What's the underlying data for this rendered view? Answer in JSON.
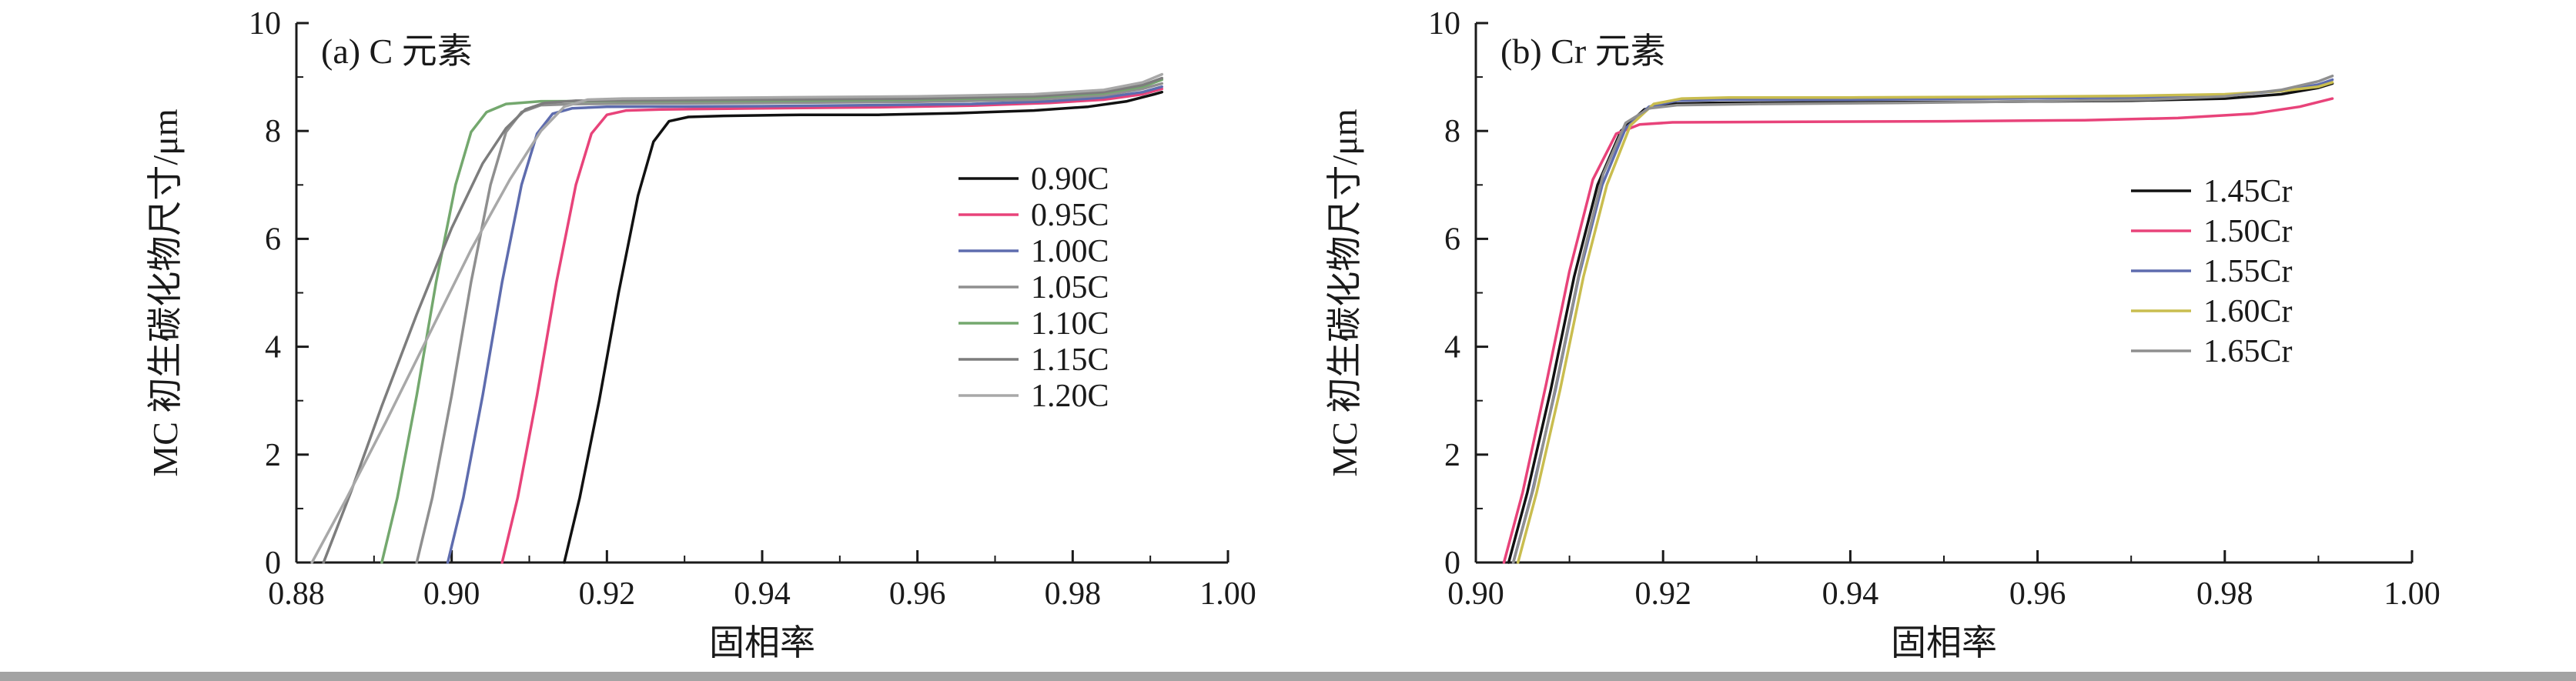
{
  "page": {
    "background": "#ffffff",
    "bottom_bar_color": "#a3a3a3",
    "axis_color": "#1a1a1a"
  },
  "chart_data": [
    {
      "type": "line",
      "panel_label": "(a) C 元素",
      "xlabel": "固相率",
      "ylabel": "MC 初生碳化物尺寸/μm",
      "xlim": [
        0.88,
        1.0
      ],
      "ylim": [
        0,
        10
      ],
      "xtick_step": 0.02,
      "ytick_step": 2,
      "x_decimals": 2,
      "grid": false,
      "legend_position": "right-middle",
      "series": [
        {
          "name": "0.90C",
          "color": "#111111",
          "points": [
            [
              0.9145,
              0
            ],
            [
              0.9165,
              1.2
            ],
            [
              0.919,
              3.0
            ],
            [
              0.9215,
              5.0
            ],
            [
              0.924,
              6.8
            ],
            [
              0.926,
              7.8
            ],
            [
              0.928,
              8.18
            ],
            [
              0.9305,
              8.26
            ],
            [
              0.935,
              8.28
            ],
            [
              0.945,
              8.3
            ],
            [
              0.955,
              8.3
            ],
            [
              0.965,
              8.33
            ],
            [
              0.975,
              8.38
            ],
            [
              0.982,
              8.45
            ],
            [
              0.987,
              8.55
            ],
            [
              0.9905,
              8.68
            ],
            [
              0.9915,
              8.72
            ]
          ]
        },
        {
          "name": "0.95C",
          "color": "#e8437a",
          "points": [
            [
              0.9065,
              0
            ],
            [
              0.9085,
              1.2
            ],
            [
              0.911,
              3.1
            ],
            [
              0.9135,
              5.2
            ],
            [
              0.916,
              7.0
            ],
            [
              0.918,
              7.95
            ],
            [
              0.92,
              8.3
            ],
            [
              0.9225,
              8.38
            ],
            [
              0.927,
              8.4
            ],
            [
              0.94,
              8.42
            ],
            [
              0.955,
              8.44
            ],
            [
              0.967,
              8.47
            ],
            [
              0.977,
              8.52
            ],
            [
              0.984,
              8.58
            ],
            [
              0.989,
              8.68
            ],
            [
              0.9915,
              8.78
            ]
          ]
        },
        {
          "name": "1.00C",
          "color": "#5e6cae",
          "points": [
            [
              0.8995,
              0
            ],
            [
              0.9015,
              1.2
            ],
            [
              0.904,
              3.1
            ],
            [
              0.9065,
              5.2
            ],
            [
              0.909,
              7.0
            ],
            [
              0.911,
              7.95
            ],
            [
              0.913,
              8.32
            ],
            [
              0.9155,
              8.42
            ],
            [
              0.92,
              8.45
            ],
            [
              0.94,
              8.46
            ],
            [
              0.955,
              8.48
            ],
            [
              0.967,
              8.5
            ],
            [
              0.977,
              8.55
            ],
            [
              0.984,
              8.62
            ],
            [
              0.989,
              8.72
            ],
            [
              0.9915,
              8.82
            ]
          ]
        },
        {
          "name": "1.05C",
          "color": "#8f8f8f",
          "points": [
            [
              0.8955,
              0
            ],
            [
              0.8975,
              1.2
            ],
            [
              0.9,
              3.1
            ],
            [
              0.9025,
              5.2
            ],
            [
              0.905,
              7.0
            ],
            [
              0.907,
              7.98
            ],
            [
              0.909,
              8.35
            ],
            [
              0.9115,
              8.48
            ],
            [
              0.916,
              8.5
            ],
            [
              0.94,
              8.52
            ],
            [
              0.96,
              8.54
            ],
            [
              0.975,
              8.58
            ],
            [
              0.984,
              8.66
            ],
            [
              0.989,
              8.78
            ],
            [
              0.9915,
              8.88
            ]
          ]
        },
        {
          "name": "1.10C",
          "color": "#74a86e",
          "points": [
            [
              0.891,
              0
            ],
            [
              0.893,
              1.2
            ],
            [
              0.8955,
              3.1
            ],
            [
              0.898,
              5.2
            ],
            [
              0.9005,
              7.0
            ],
            [
              0.9025,
              7.98
            ],
            [
              0.9045,
              8.35
            ],
            [
              0.907,
              8.5
            ],
            [
              0.9115,
              8.55
            ],
            [
              0.94,
              8.56
            ],
            [
              0.96,
              8.58
            ],
            [
              0.975,
              8.62
            ],
            [
              0.984,
              8.7
            ],
            [
              0.989,
              8.82
            ],
            [
              0.9915,
              8.95
            ]
          ]
        },
        {
          "name": "1.15C",
          "color": "#7d7d7d",
          "points": [
            [
              0.8835,
              0
            ],
            [
              0.887,
              1.3
            ],
            [
              0.891,
              2.9
            ],
            [
              0.8955,
              4.6
            ],
            [
              0.9,
              6.2
            ],
            [
              0.904,
              7.4
            ],
            [
              0.907,
              8.05
            ],
            [
              0.9095,
              8.4
            ],
            [
              0.912,
              8.52
            ],
            [
              0.916,
              8.56
            ],
            [
              0.94,
              8.58
            ],
            [
              0.96,
              8.6
            ],
            [
              0.975,
              8.64
            ],
            [
              0.984,
              8.72
            ],
            [
              0.989,
              8.85
            ],
            [
              0.9915,
              8.98
            ]
          ]
        },
        {
          "name": "1.20C",
          "color": "#a8a8a8",
          "points": [
            [
              0.882,
              0
            ],
            [
              0.8865,
              1.2
            ],
            [
              0.8915,
              2.6
            ],
            [
              0.897,
              4.2
            ],
            [
              0.9025,
              5.8
            ],
            [
              0.9075,
              7.1
            ],
            [
              0.9115,
              8.0
            ],
            [
              0.9145,
              8.45
            ],
            [
              0.9175,
              8.58
            ],
            [
              0.922,
              8.6
            ],
            [
              0.94,
              8.62
            ],
            [
              0.96,
              8.64
            ],
            [
              0.975,
              8.68
            ],
            [
              0.984,
              8.76
            ],
            [
              0.989,
              8.9
            ],
            [
              0.9915,
              9.05
            ]
          ]
        }
      ]
    },
    {
      "type": "line",
      "panel_label": "(b) Cr 元素",
      "xlabel": "固相率",
      "ylabel": "MC 初生碳化物尺寸/μm",
      "xlim": [
        0.9,
        1.0
      ],
      "ylim": [
        0,
        10
      ],
      "xtick_step": 0.02,
      "ytick_step": 2,
      "x_decimals": 2,
      "grid": false,
      "legend_position": "right-middle",
      "series": [
        {
          "name": "1.45Cr",
          "color": "#111111",
          "points": [
            [
              0.9035,
              0
            ],
            [
              0.9055,
              1.3
            ],
            [
              0.908,
              3.2
            ],
            [
              0.9105,
              5.3
            ],
            [
              0.913,
              7.0
            ],
            [
              0.9155,
              8.0
            ],
            [
              0.918,
              8.4
            ],
            [
              0.9205,
              8.5
            ],
            [
              0.925,
              8.52
            ],
            [
              0.94,
              8.53
            ],
            [
              0.955,
              8.54
            ],
            [
              0.97,
              8.56
            ],
            [
              0.98,
              8.6
            ],
            [
              0.986,
              8.68
            ],
            [
              0.99,
              8.8
            ],
            [
              0.9915,
              8.88
            ]
          ]
        },
        {
          "name": "1.50Cr",
          "color": "#e8437a",
          "points": [
            [
              0.903,
              0
            ],
            [
              0.905,
              1.3
            ],
            [
              0.9075,
              3.3
            ],
            [
              0.91,
              5.4
            ],
            [
              0.9125,
              7.1
            ],
            [
              0.915,
              7.95
            ],
            [
              0.9175,
              8.12
            ],
            [
              0.921,
              8.16
            ],
            [
              0.935,
              8.17
            ],
            [
              0.95,
              8.18
            ],
            [
              0.965,
              8.2
            ],
            [
              0.975,
              8.24
            ],
            [
              0.983,
              8.32
            ],
            [
              0.988,
              8.45
            ],
            [
              0.9915,
              8.6
            ]
          ]
        },
        {
          "name": "1.55Cr",
          "color": "#5e6cae",
          "points": [
            [
              0.904,
              0
            ],
            [
              0.906,
              1.3
            ],
            [
              0.9085,
              3.2
            ],
            [
              0.911,
              5.3
            ],
            [
              0.9135,
              7.0
            ],
            [
              0.916,
              8.05
            ],
            [
              0.9185,
              8.45
            ],
            [
              0.9215,
              8.56
            ],
            [
              0.926,
              8.58
            ],
            [
              0.94,
              8.58
            ],
            [
              0.955,
              8.6
            ],
            [
              0.97,
              8.62
            ],
            [
              0.98,
              8.66
            ],
            [
              0.986,
              8.74
            ],
            [
              0.99,
              8.86
            ],
            [
              0.9915,
              8.95
            ]
          ]
        },
        {
          "name": "1.60Cr",
          "color": "#c9bd4f",
          "points": [
            [
              0.9045,
              0
            ],
            [
              0.9065,
              1.3
            ],
            [
              0.909,
              3.2
            ],
            [
              0.9115,
              5.3
            ],
            [
              0.914,
              7.0
            ],
            [
              0.9165,
              8.1
            ],
            [
              0.919,
              8.5
            ],
            [
              0.922,
              8.6
            ],
            [
              0.927,
              8.62
            ],
            [
              0.94,
              8.62
            ],
            [
              0.955,
              8.63
            ],
            [
              0.97,
              8.65
            ],
            [
              0.98,
              8.68
            ],
            [
              0.986,
              8.74
            ],
            [
              0.99,
              8.82
            ],
            [
              0.9915,
              8.9
            ]
          ]
        },
        {
          "name": "1.65Cr",
          "color": "#8f8f8f",
          "points": [
            [
              0.904,
              0
            ],
            [
              0.9062,
              1.4
            ],
            [
              0.9087,
              3.4
            ],
            [
              0.9112,
              5.5
            ],
            [
              0.9136,
              7.2
            ],
            [
              0.916,
              8.15
            ],
            [
              0.9185,
              8.42
            ],
            [
              0.9215,
              8.48
            ],
            [
              0.93,
              8.5
            ],
            [
              0.945,
              8.52
            ],
            [
              0.96,
              8.55
            ],
            [
              0.972,
              8.58
            ],
            [
              0.98,
              8.64
            ],
            [
              0.986,
              8.76
            ],
            [
              0.99,
              8.92
            ],
            [
              0.9915,
              9.02
            ]
          ]
        }
      ]
    }
  ]
}
